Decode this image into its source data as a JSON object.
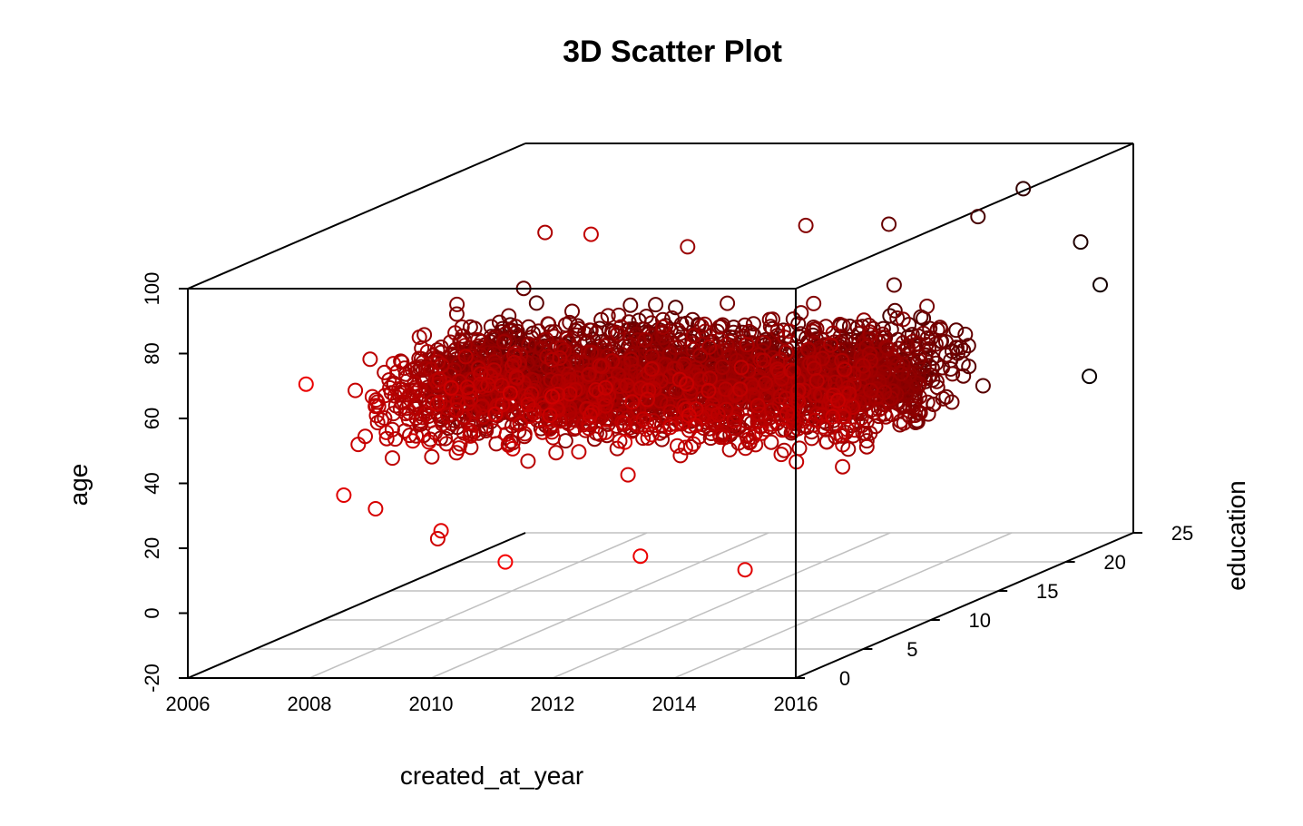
{
  "chart_data": {
    "type": "scatter",
    "title": "3D Scatter Plot",
    "xlabel": "created_at_year",
    "ylabel": "education",
    "zlabel": "age",
    "xlim": [
      2006,
      2016
    ],
    "ylim": [
      0,
      25
    ],
    "zlim": [
      -20,
      100
    ],
    "x_ticks": [
      "2006",
      "2008",
      "2010",
      "2012",
      "2014",
      "2016"
    ],
    "y_ticks": [
      "0",
      "5",
      "10",
      "15",
      "20",
      "25"
    ],
    "z_ticks": [
      "-20",
      "0",
      "20",
      "40",
      "60",
      "80",
      "100"
    ],
    "grid": "xy-floor",
    "point_color_low": "#ff0000",
    "point_color_high": "#000000",
    "color_by": "education",
    "marker": "open-circle",
    "points_sample": [
      {
        "x": 2007.5,
        "y": 2,
        "z": 67
      },
      {
        "x": 2007.9,
        "y": 3,
        "z": 31
      },
      {
        "x": 2008.2,
        "y": 4,
        "z": 25
      },
      {
        "x": 2009.0,
        "y": 5,
        "z": 14
      },
      {
        "x": 2010.1,
        "y": 8,
        "z": 103
      },
      {
        "x": 2011.3,
        "y": 6,
        "z": 106
      },
      {
        "x": 2012.0,
        "y": 10,
        "z": 95
      },
      {
        "x": 2013.5,
        "y": 12,
        "z": 98
      },
      {
        "x": 2014.2,
        "y": 15,
        "z": 93
      },
      {
        "x": 2015.0,
        "y": 18,
        "z": 90
      },
      {
        "x": 2015.3,
        "y": 20,
        "z": 95
      },
      {
        "x": 2015.8,
        "y": 22,
        "z": 75
      },
      {
        "x": 2015.9,
        "y": 23,
        "z": 60
      },
      {
        "x": 2015.5,
        "y": 24,
        "z": 30
      },
      {
        "x": 2014.5,
        "y": 3,
        "z": 8
      },
      {
        "x": 2013.0,
        "y": 2,
        "z": 14
      },
      {
        "x": 2011.0,
        "y": 1,
        "z": 14
      },
      {
        "x": 2009.5,
        "y": 3,
        "z": 20
      },
      {
        "x": 2012.5,
        "y": 8,
        "z": 55
      },
      {
        "x": 2010.5,
        "y": 6,
        "z": 45
      }
    ],
    "series_description_shown_visually_only": true
  }
}
